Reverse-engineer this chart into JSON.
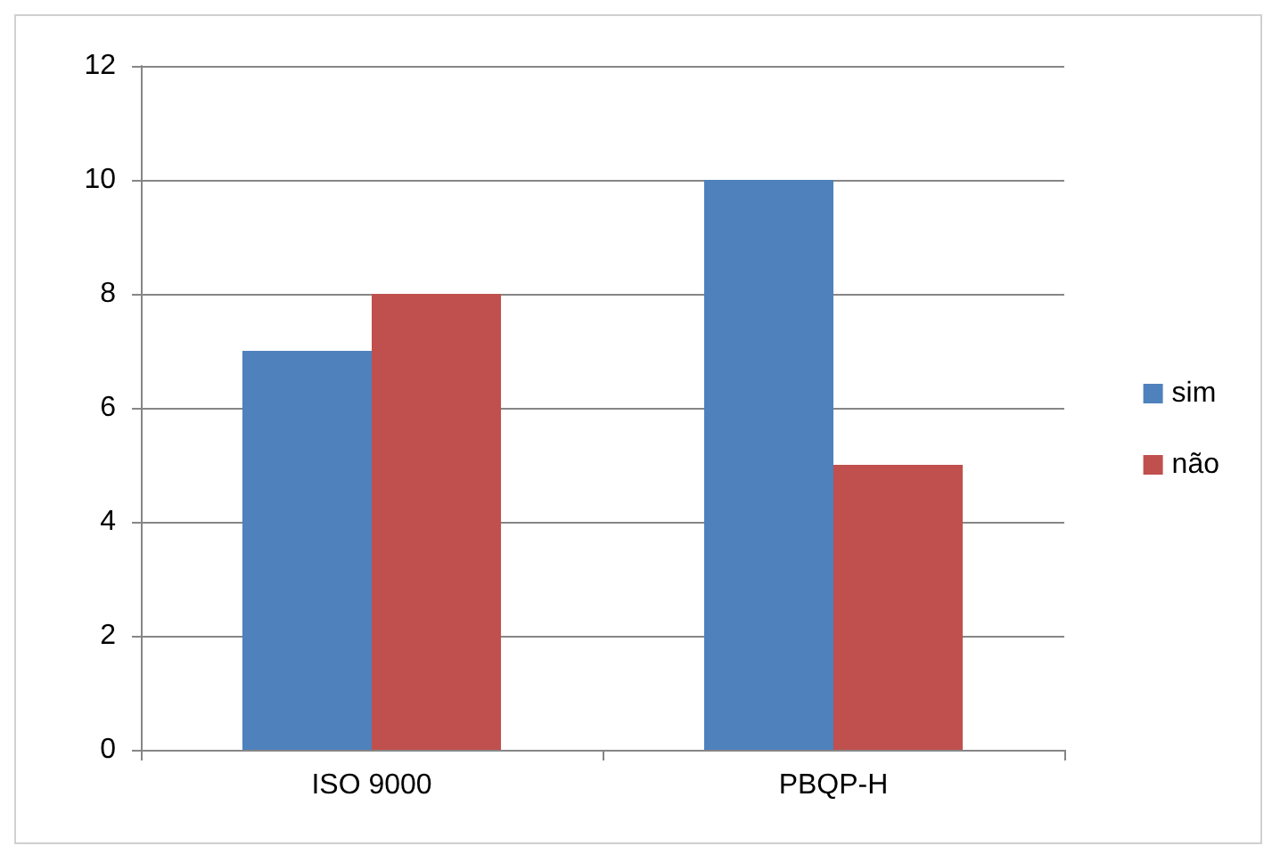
{
  "chart_data": {
    "type": "bar",
    "categories": [
      "ISO 9000",
      "PBQP-H"
    ],
    "series": [
      {
        "name": "sim",
        "color": "#4f81bd",
        "values": [
          7,
          10
        ]
      },
      {
        "name": "não",
        "color": "#c0504d",
        "values": [
          8,
          5
        ]
      }
    ],
    "ylim": [
      0,
      12
    ],
    "yticks": [
      0,
      2,
      4,
      6,
      8,
      10,
      12
    ],
    "grid": "y",
    "legend": "right"
  }
}
